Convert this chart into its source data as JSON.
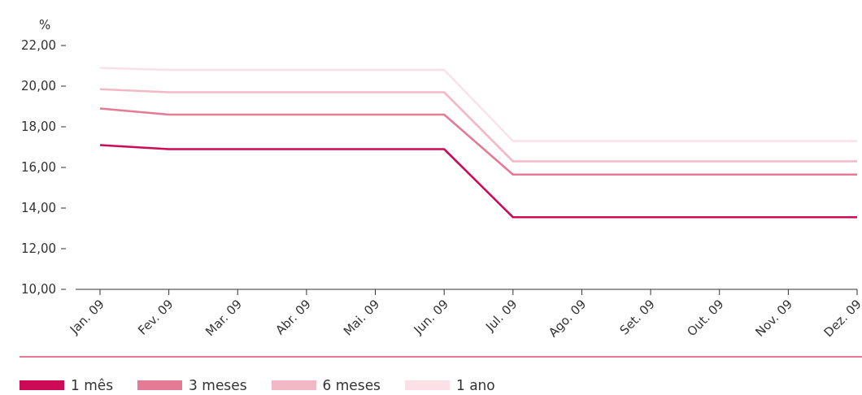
{
  "chart_data": {
    "type": "line",
    "ylabel": "%",
    "categories": [
      "Jan. 09",
      "Fev. 09",
      "Mar. 09",
      "Abr. 09",
      "Mai. 09",
      "Jun. 09",
      "Jul. 09",
      "Ago. 09",
      "Set. 09",
      "Out. 09",
      "Nov. 09",
      "Dez. 09"
    ],
    "series": [
      {
        "name": "1 mês",
        "color": "#cc0a55",
        "values": [
          17.1,
          16.9,
          16.9,
          16.9,
          16.9,
          16.9,
          13.55,
          13.55,
          13.55,
          13.55,
          13.55,
          13.55
        ]
      },
      {
        "name": "3 meses",
        "color": "#e57a94",
        "values": [
          18.9,
          18.6,
          18.6,
          18.6,
          18.6,
          18.6,
          15.65,
          15.65,
          15.65,
          15.65,
          15.65,
          15.65
        ]
      },
      {
        "name": "6 meses",
        "color": "#f3b8c5",
        "values": [
          19.85,
          19.7,
          19.7,
          19.7,
          19.7,
          19.7,
          16.3,
          16.3,
          16.3,
          16.3,
          16.3,
          16.3
        ]
      },
      {
        "name": "1 ano",
        "color": "#fbe0e7",
        "values": [
          20.9,
          20.8,
          20.8,
          20.8,
          20.8,
          20.8,
          17.3,
          17.3,
          17.3,
          17.3,
          17.3,
          17.3
        ]
      }
    ],
    "ylim": [
      10,
      22
    ],
    "yticks": [
      {
        "value": 10,
        "label": "10,00"
      },
      {
        "value": 12,
        "label": "12,00"
      },
      {
        "value": 14,
        "label": "14,00"
      },
      {
        "value": 16,
        "label": "16,00"
      },
      {
        "value": 18,
        "label": "18,00"
      },
      {
        "value": 20,
        "label": "20,00"
      },
      {
        "value": 22,
        "label": "22,00"
      }
    ],
    "grid": false,
    "legend": "bottom",
    "marker": "none",
    "line_style": "solid"
  }
}
